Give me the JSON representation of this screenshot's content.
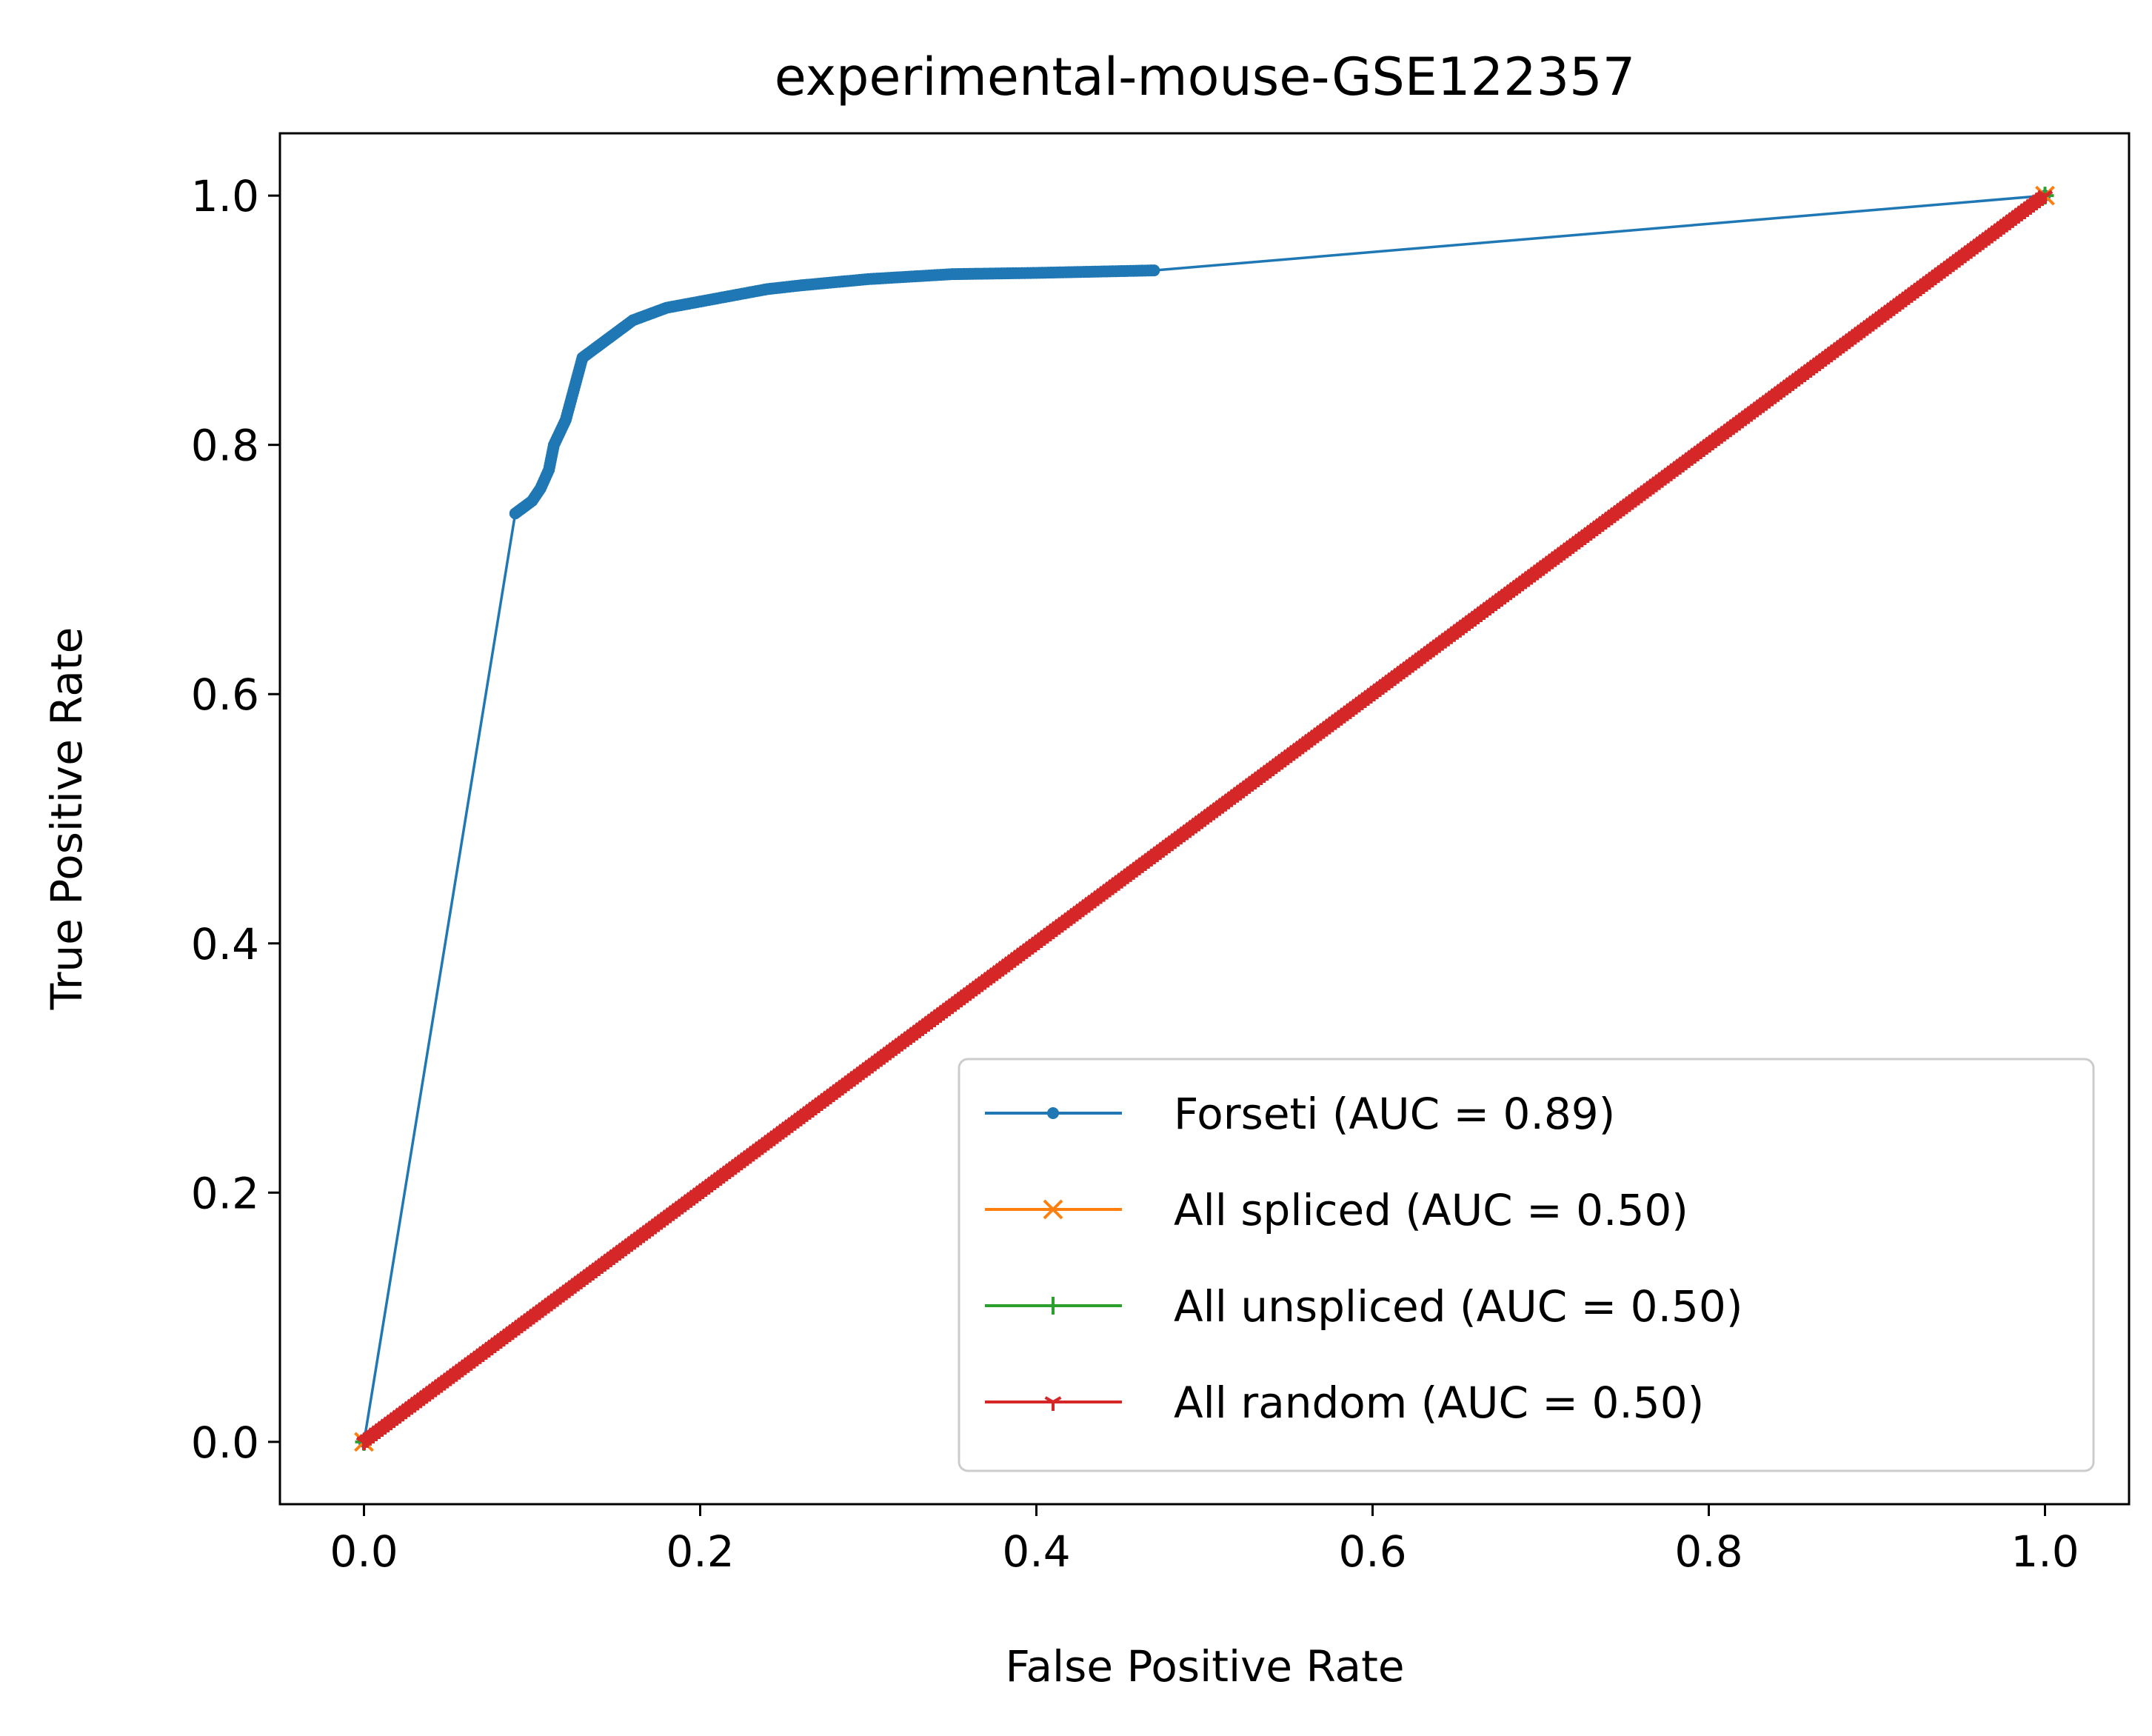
{
  "chart_data": {
    "type": "line",
    "title": "experimental-mouse-GSE122357",
    "xlabel": "False Positive Rate",
    "ylabel": "True Positive Rate",
    "xlim": [
      -0.05,
      1.05
    ],
    "ylim": [
      -0.05,
      1.05
    ],
    "xticks": [
      0.0,
      0.2,
      0.4,
      0.6,
      0.8,
      1.0
    ],
    "yticks": [
      0.0,
      0.2,
      0.4,
      0.6,
      0.8,
      1.0
    ],
    "xtick_labels": [
      "0.0",
      "0.2",
      "0.4",
      "0.6",
      "0.8",
      "1.0"
    ],
    "ytick_labels": [
      "0.0",
      "0.2",
      "0.4",
      "0.6",
      "0.8",
      "1.0"
    ],
    "grid": false,
    "legend_position": "lower right",
    "series": [
      {
        "name": "Forseti (AUC = 0.89)",
        "color": "#1f77b4",
        "marker": "dot",
        "x": [
          0.0,
          0.09,
          0.1,
          0.105,
          0.11,
          0.113,
          0.12,
          0.125,
          0.13,
          0.14,
          0.15,
          0.16,
          0.17,
          0.18,
          0.2,
          0.22,
          0.24,
          0.26,
          0.3,
          0.35,
          0.4,
          0.47,
          1.0
        ],
        "y": [
          0.0,
          0.745,
          0.755,
          0.765,
          0.78,
          0.8,
          0.82,
          0.845,
          0.87,
          0.88,
          0.89,
          0.9,
          0.905,
          0.91,
          0.915,
          0.92,
          0.925,
          0.928,
          0.933,
          0.937,
          0.938,
          0.94,
          1.0
        ]
      },
      {
        "name": "All spliced (AUC = 0.50)",
        "color": "#ff7f0e",
        "marker": "x",
        "x": [
          0.0,
          1.0
        ],
        "y": [
          0.0,
          1.0
        ]
      },
      {
        "name": "All unspliced (AUC = 0.50)",
        "color": "#2ca02c",
        "marker": "plus",
        "x": [
          0.0,
          1.0
        ],
        "y": [
          0.0,
          1.0
        ]
      },
      {
        "name": "All random (AUC = 0.50)",
        "color": "#d62728",
        "marker": "tri",
        "x": [
          0.0,
          0.1,
          0.2,
          0.3,
          0.4,
          0.5,
          0.6,
          0.7,
          0.8,
          0.9,
          1.0
        ],
        "y": [
          0.0,
          0.1,
          0.2,
          0.3,
          0.4,
          0.5,
          0.6,
          0.7,
          0.8,
          0.9,
          1.0
        ]
      }
    ]
  }
}
